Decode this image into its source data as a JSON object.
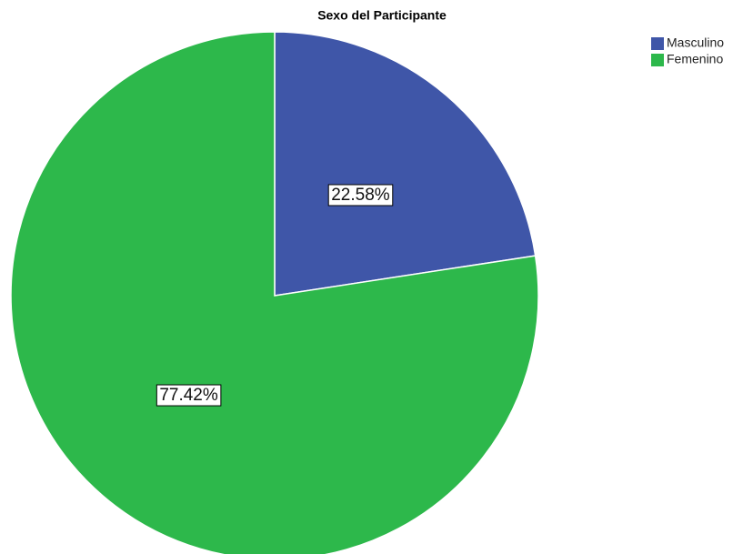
{
  "chart_data": {
    "type": "pie",
    "title": "Sexo del Participante",
    "categories": [
      "Masculino",
      "Femenino"
    ],
    "values": [
      22.58,
      77.42
    ],
    "value_labels": [
      "22.58%",
      "77.42%"
    ],
    "colors": [
      "#3f56a8",
      "#2db84b"
    ],
    "legend": "top-right"
  }
}
